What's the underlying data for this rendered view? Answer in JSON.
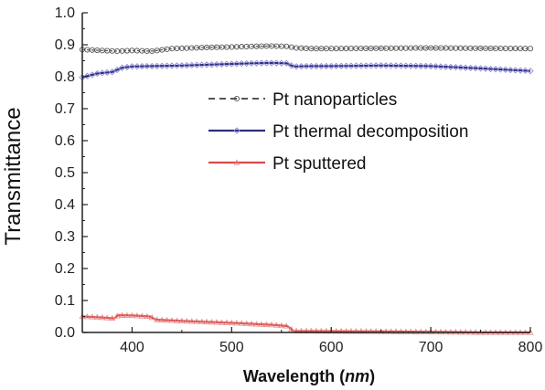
{
  "chart_data": {
    "type": "line",
    "xlabel_main": "Wavelength (",
    "xlabel_unit": "nm",
    "xlabel_close": ")",
    "ylabel": "Transmittance",
    "xlim": [
      350,
      800
    ],
    "ylim": [
      0.0,
      1.0
    ],
    "xticks": [
      400,
      500,
      600,
      700,
      800
    ],
    "yticks": [
      0.0,
      0.1,
      0.2,
      0.3,
      0.4,
      0.5,
      0.6,
      0.7,
      0.8,
      0.9,
      1.0
    ],
    "ytick_labels": [
      "0.0",
      "0.1",
      "0.2",
      "0.3",
      "0.4",
      "0.5",
      "0.6",
      "0.7",
      "0.8",
      "0.9",
      "1.0"
    ],
    "legend_position": "center-right",
    "series": [
      {
        "name": "Pt nanoparticles",
        "color": "#555555",
        "dash": true,
        "marker": "circle",
        "x": [
          350,
          370,
          385,
          400,
          420,
          440,
          460,
          480,
          500,
          520,
          540,
          555,
          565,
          580,
          600,
          650,
          700,
          750,
          800
        ],
        "y": [
          0.885,
          0.882,
          0.88,
          0.882,
          0.88,
          0.888,
          0.89,
          0.892,
          0.893,
          0.895,
          0.896,
          0.895,
          0.89,
          0.888,
          0.888,
          0.889,
          0.89,
          0.889,
          0.888
        ]
      },
      {
        "name": "Pt thermal decomposition",
        "color": "#2e2e7a",
        "dash": false,
        "marker": "diamond",
        "x": [
          350,
          365,
          380,
          390,
          400,
          420,
          450,
          480,
          500,
          520,
          540,
          555,
          562,
          580,
          600,
          650,
          700,
          750,
          800
        ],
        "y": [
          0.798,
          0.81,
          0.815,
          0.828,
          0.832,
          0.833,
          0.835,
          0.838,
          0.84,
          0.842,
          0.843,
          0.842,
          0.832,
          0.833,
          0.833,
          0.835,
          0.833,
          0.826,
          0.818
        ]
      },
      {
        "name": "Pt sputtered",
        "color": "#d94a4a",
        "dash": false,
        "marker": "triangle",
        "x": [
          350,
          370,
          382,
          386,
          400,
          418,
          424,
          450,
          500,
          540,
          556,
          562,
          600,
          650,
          700,
          750,
          800
        ],
        "y": [
          0.05,
          0.047,
          0.044,
          0.054,
          0.053,
          0.05,
          0.04,
          0.036,
          0.03,
          0.024,
          0.02,
          0.005,
          0.004,
          0.003,
          0.002,
          0.0,
          0.0
        ]
      }
    ]
  }
}
